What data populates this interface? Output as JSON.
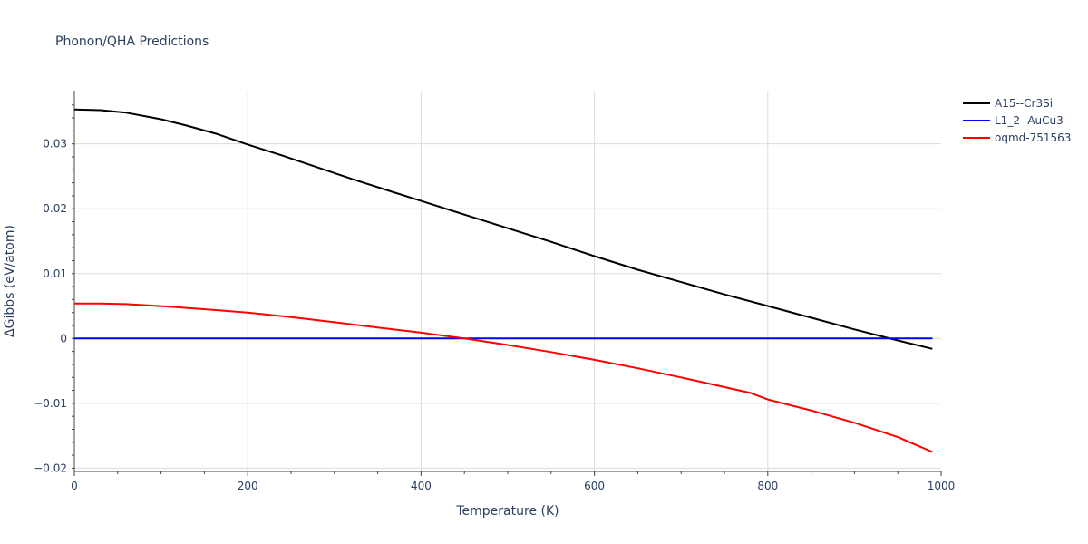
{
  "chart_data": {
    "type": "line",
    "title": "Phonon/QHA Predictions",
    "xlabel": "Temperature (K)",
    "ylabel": "ΔGibbs (eV/atom)",
    "xlim": [
      0,
      1000
    ],
    "ylim": [
      -0.0205,
      0.0382
    ],
    "x_ticks": [
      0,
      200,
      400,
      600,
      800,
      1000
    ],
    "x_tick_labels": [
      "0",
      "200",
      "400",
      "600",
      "800",
      "1000"
    ],
    "y_ticks": [
      -0.02,
      -0.01,
      0,
      0.01,
      0.02,
      0.03
    ],
    "y_tick_labels": [
      "−0.02",
      "−0.01",
      "0",
      "0.01",
      "0.02",
      "0.03"
    ],
    "grid": true,
    "legend_position": "top-right outside",
    "series": [
      {
        "name": "A15--Cr3Si",
        "color": "#000000",
        "x": [
          0,
          30,
          60,
          100,
          130,
          165,
          200,
          240,
          280,
          320,
          360,
          400,
          450,
          500,
          550,
          600,
          650,
          700,
          750,
          800,
          850,
          900,
          950,
          990
        ],
        "y": [
          0.0353,
          0.0352,
          0.0348,
          0.0338,
          0.0328,
          0.0315,
          0.0299,
          0.0282,
          0.0264,
          0.0246,
          0.0229,
          0.0212,
          0.0191,
          0.017,
          0.0149,
          0.0127,
          0.0106,
          0.0087,
          0.0068,
          0.005,
          0.0032,
          0.0014,
          -0.0003,
          -0.0016
        ]
      },
      {
        "name": "L1_2--AuCu3",
        "color": "#0000ff",
        "x": [
          0,
          990
        ],
        "y": [
          0,
          0
        ]
      },
      {
        "name": "oqmd-751563",
        "color": "#ff0000",
        "x": [
          0,
          30,
          60,
          110,
          160,
          200,
          250,
          300,
          350,
          400,
          450,
          500,
          550,
          600,
          650,
          700,
          760,
          780,
          800,
          850,
          900,
          950,
          990
        ],
        "y": [
          0.0054,
          0.0054,
          0.0053,
          0.0049,
          0.0044,
          0.004,
          0.0033,
          0.0025,
          0.0017,
          0.0009,
          0.0,
          -0.001,
          -0.0021,
          -0.0033,
          -0.0046,
          -0.006,
          -0.0078,
          -0.0084,
          -0.0094,
          -0.0111,
          -0.013,
          -0.0152,
          -0.0175
        ]
      }
    ]
  }
}
